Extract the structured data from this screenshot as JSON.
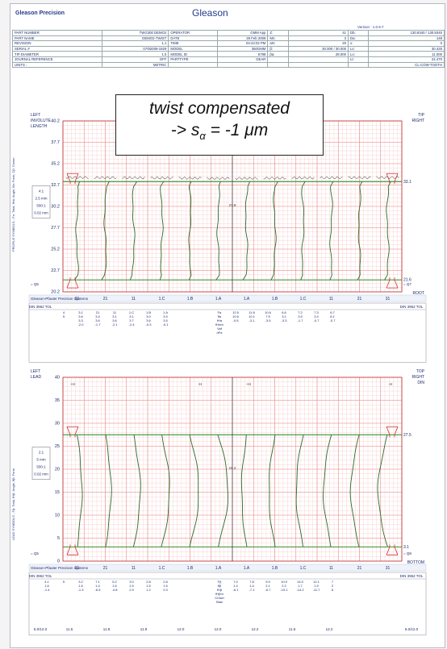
{
  "header": {
    "logo": "Gleason Precision",
    "brand": "Gleason",
    "version": "Version : 1.0.9.7",
    "rows": [
      [
        "PART NUMBER",
        "TWG300 DEMO2",
        "OPERATOR",
        "GMM App",
        "Z:",
        "41",
        "Db:",
        "130.9340 / 130.9340"
      ],
      [
        "PART NAME",
        "DEMO2-TWIST",
        "DATE",
        "28 Feb 2009",
        "Mn:",
        "3",
        "Da:",
        "148"
      ],
      [
        "REVISION",
        "1.1",
        "TIME",
        "04:44:02 PM",
        "aN:",
        "20",
        "x:",
        "0"
      ],
      [
        "SERIAL #",
        "07/92009-1929",
        "MODEL",
        "360GMM",
        "β:",
        "30.000 / 30.000",
        "Ls:",
        "30.425"
      ],
      [
        "TIP DIAMETER",
        "1.5",
        "MODEL ID",
        "5798",
        "βa:",
        "28.000",
        "Lo:",
        "11.000"
      ],
      [
        "JOURNAL REFERENCE",
        "OFF",
        "PARTTYPE",
        "GEAR",
        "",
        "",
        "Lt:",
        "24.470"
      ],
      [
        "UNITS :",
        "METRIC",
        "",
        "",
        "",
        "",
        "",
        "CL-COW-TOOTH"
      ]
    ]
  },
  "callout": {
    "line1": "twist compensated",
    "line2_prefix": "-> s",
    "line2_sub": "α",
    "line2_suffix": " = -1 μm"
  },
  "chart_data": [
    {
      "type": "line",
      "name": "profile",
      "left_labels": [
        "LEFT",
        "INVOLUTE",
        "LENGTH"
      ],
      "right_labels": [
        "TIP",
        "RIGHT"
      ],
      "bottom_right": "ROOT",
      "y_ticks": [
        40.2,
        37.7,
        35.2,
        32.7,
        30.2,
        27.7,
        25.2,
        22.7,
        20.2
      ],
      "ylim": [
        20.2,
        40.2
      ],
      "eval_upper": 33.1,
      "eval_lower": 21.6,
      "center_label": "27.8",
      "mid_label": "27.8",
      "left_mark": "= Q5",
      "right_mark": "= Q7",
      "scale": [
        "4:1",
        "2.5 mm",
        "500:1",
        "0.02 mm"
      ],
      "tooth_labels": [
        "31",
        "21",
        "11",
        "1.C",
        "1.B",
        "1.A",
        "1.A",
        "1.B",
        "1.C",
        "11",
        "21",
        "31"
      ],
      "footer_brand": "Gleason-Pfauter Precision Systems",
      "side_label": "PROFILE SYMBOLS - Fa: Total, fHa: Angle, ffa: Form, Cβ: Crown",
      "table": {
        "left_title": "DIN 3962 TOL",
        "right_title": "DIN 3962 TOL",
        "rows_left": [
          [
            "",
            "4",
            "3.1",
            "21",
            "11",
            "1.C",
            "1.B",
            "1.A"
          ],
          [
            "",
            "5",
            "3.6",
            "3.4",
            "3.1",
            "3.1",
            "3.0",
            "3.5"
          ],
          [
            "",
            "",
            "3.3",
            "3.6",
            "3.6",
            "3.7",
            "3.6",
            "3.5"
          ],
          [
            "",
            "",
            "-2.0",
            "-1.7",
            "-2.1",
            "-2.4",
            "-0.3",
            "-0.1"
          ]
        ],
        "mid_keys": [
          "Fα",
          "ffα",
          "fHα",
          "fHαm",
          "Vaf",
          "dFα"
        ],
        "rows_right": [
          [
            "12.5",
            "11.8",
            "10.6",
            "6.6",
            "7.2",
            "7.3",
            "6.7"
          ],
          [
            "10.6",
            "10.1",
            "7.5",
            "3.1",
            "3.5",
            "3.4",
            "6.1"
          ],
          [
            "-0.5",
            "-3.1",
            "-3.5",
            "-3.3",
            "-1.7",
            "-0.7",
            "-0.7"
          ]
        ]
      }
    },
    {
      "type": "line",
      "name": "lead",
      "left_labels": [
        "LEFT",
        "LEAD"
      ],
      "right_labels": [
        "TOP",
        "RIGHT",
        "DIN"
      ],
      "bottom_right": "BOTTOM",
      "y_ticks": [
        40,
        35,
        30,
        25,
        20,
        15,
        10,
        5,
        0
      ],
      "ylim": [
        0,
        40
      ],
      "eval_upper": 27.5,
      "eval_lower": 3.1,
      "center_label": "15.2",
      "left_mark": "= Q5",
      "right_mark": "= Q8",
      "top_marks": [
        "+H",
        "-H",
        "+H",
        "-H"
      ],
      "scale": [
        "2:1",
        "5 mm",
        "500:1",
        "0.02 mm"
      ],
      "tooth_labels": [
        "31",
        "21",
        "11",
        "1.C",
        "1.B",
        "1.A",
        "1.A",
        "1.B",
        "1.C",
        "11",
        "21",
        "31"
      ],
      "footer_brand": "Gleason-Pfauter Precision Systems",
      "side_label": "LEAD SYMBOLS - Fβ: Total, fHβ: Angle, ffβ: Form",
      "table": {
        "left_title": "DIN 3962 TOL",
        "right_title": "DIN 3962 TOL",
        "rows_left": [
          [
            "4.1",
            "5",
            "3.2",
            "7.1",
            "5.2",
            "3.0",
            "2.8",
            "2.8"
          ],
          [
            "1.6",
            "",
            "1.5",
            "1.4",
            "1.6",
            "1.5",
            "1.5",
            "1.5"
          ],
          [
            "-1.4",
            "",
            "-1.3",
            "-6.5",
            "-4.8",
            "2.9",
            "1.2",
            "0.3"
          ]
        ],
        "mid_keys": [
          "Fβ",
          "ffβ",
          "fHβ",
          "fHβm",
          "Crown",
          "Bias"
        ],
        "rows_right": [
          [
            "7.0",
            "7.8",
            "9.9",
            "10.9",
            "14.0",
            "12.1",
            "7"
          ],
          [
            "1.4",
            "1.4",
            "2.1",
            "2.2",
            "1.7",
            "1.9",
            "2"
          ],
          [
            "-6.1",
            "-7.1",
            "-6.7",
            "-10.1",
            "-14.2",
            "-11.7",
            "6"
          ]
        ],
        "footer_left": "6.0/12.0",
        "footer_right": "6.0/12.0",
        "footer_vals": [
          "11.6",
          "11.8",
          "11.9",
          "12.0",
          "12.0",
          "12.2",
          "11.6",
          "12.2"
        ]
      }
    }
  ]
}
